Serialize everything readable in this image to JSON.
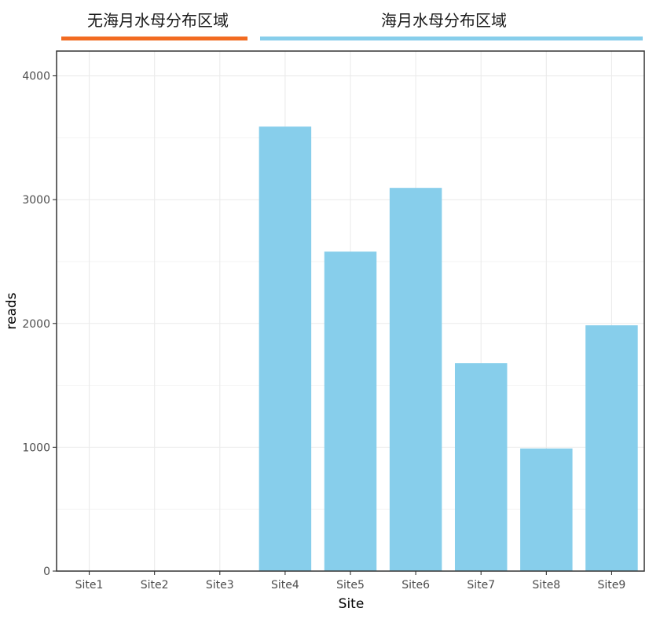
{
  "chart_data": {
    "type": "bar",
    "categories": [
      "Site1",
      "Site2",
      "Site3",
      "Site4",
      "Site5",
      "Site6",
      "Site7",
      "Site8",
      "Site9"
    ],
    "values": [
      0,
      0,
      0,
      3590,
      2580,
      3095,
      1680,
      990,
      1985
    ],
    "xlabel": "Site",
    "ylabel": "reads",
    "ylim": [
      0,
      4200
    ],
    "yticks": [
      0,
      1000,
      2000,
      3000,
      4000
    ],
    "grid": true,
    "bar_color": "#87CEEB",
    "groups": [
      {
        "label": "无海月水母分布区域",
        "categories": [
          "Site1",
          "Site2",
          "Site3"
        ],
        "color": "#F26B21"
      },
      {
        "label": "海月水母分布区域",
        "categories": [
          "Site4",
          "Site5",
          "Site6",
          "Site7",
          "Site8",
          "Site9"
        ],
        "color": "#87CEEB"
      }
    ]
  }
}
